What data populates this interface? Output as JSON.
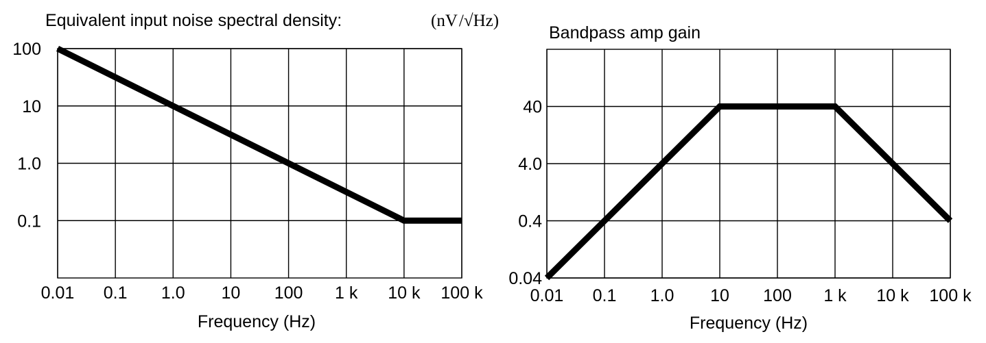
{
  "chart_data": [
    {
      "type": "line",
      "title": "Equivalent input noise spectral density:",
      "ylabel": "(nV/√Hz)",
      "ylabel_parts": {
        "open": "(nV",
        "slash": "/",
        "root": "√",
        "unit": "Hz",
        "close": ")"
      },
      "xlabel": "Frequency (Hz)",
      "x_scale": "log",
      "y_scale": "log",
      "grid": true,
      "xlim": [
        0.01,
        100000
      ],
      "ylim": [
        0.01,
        100
      ],
      "x_ticks": [
        {
          "value": 0.01,
          "label": "0.01"
        },
        {
          "value": 0.1,
          "label": "0.1"
        },
        {
          "value": 1,
          "label": "1.0"
        },
        {
          "value": 10,
          "label": "10"
        },
        {
          "value": 100,
          "label": "100"
        },
        {
          "value": 1000,
          "label": "1 k"
        },
        {
          "value": 10000,
          "label": "10 k"
        },
        {
          "value": 100000,
          "label": "100 k"
        }
      ],
      "y_ticks": [
        {
          "value": 100,
          "label": "100"
        },
        {
          "value": 10,
          "label": "10"
        },
        {
          "value": 1,
          "label": "1.0"
        },
        {
          "value": 0.1,
          "label": "0.1"
        }
      ],
      "series": [
        {
          "x": [
            0.01,
            10000,
            100000
          ],
          "y": [
            100,
            0.1,
            0.1
          ]
        }
      ]
    },
    {
      "type": "line",
      "title": "Bandpass amp gain",
      "xlabel": "Frequency (Hz)",
      "x_scale": "log",
      "y_scale": "log",
      "grid": true,
      "xlim": [
        0.01,
        100000
      ],
      "ylim": [
        0.04,
        400
      ],
      "x_ticks": [
        {
          "value": 0.01,
          "label": "0.01"
        },
        {
          "value": 0.1,
          "label": "0.1"
        },
        {
          "value": 1,
          "label": "1.0"
        },
        {
          "value": 10,
          "label": "10"
        },
        {
          "value": 100,
          "label": "100"
        },
        {
          "value": 1000,
          "label": "1 k"
        },
        {
          "value": 10000,
          "label": "10 k"
        },
        {
          "value": 100000,
          "label": "100 k"
        }
      ],
      "y_ticks": [
        {
          "value": 40,
          "label": "40"
        },
        {
          "value": 4,
          "label": "4.0"
        },
        {
          "value": 0.4,
          "label": "0.4"
        },
        {
          "value": 0.04,
          "label": "0.04"
        }
      ],
      "series": [
        {
          "x": [
            0.01,
            10,
            1000,
            100000
          ],
          "y": [
            0.04,
            40,
            40,
            0.4
          ]
        }
      ]
    }
  ]
}
